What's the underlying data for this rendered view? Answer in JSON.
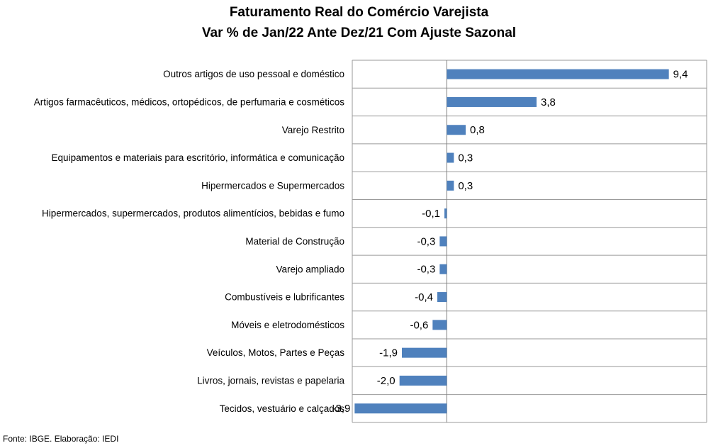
{
  "chart_data": {
    "type": "bar",
    "orientation": "horizontal",
    "title": "Faturamento Real do Comércio Varejista",
    "subtitle": "Var % de Jan/22 Ante Dez/21 Com Ajuste Sazonal",
    "categories": [
      "Outros artigos de uso pessoal e doméstico",
      "Artigos farmacêuticos, médicos, ortopédicos, de perfumaria e cosméticos",
      "Varejo Restrito",
      "Equipamentos e materiais para escritório, informática e comunicação",
      "Hipermercados e Supermercados",
      "Hipermercados, supermercados, produtos alimentícios, bebidas e fumo",
      "Material de Construção",
      "Varejo ampliado",
      "Combustíveis e lubrificantes",
      "Móveis e eletrodomésticos",
      "Veículos, Motos, Partes e Peças",
      "Livros, jornais, revistas e papelaria",
      "Tecidos, vestuário e calçados"
    ],
    "values": [
      9.4,
      3.8,
      0.8,
      0.3,
      0.3,
      -0.1,
      -0.3,
      -0.3,
      -0.4,
      -0.6,
      -1.9,
      -2.0,
      -3.9
    ],
    "value_labels": [
      "9,4",
      "3,8",
      "0,8",
      "0,3",
      "0,3",
      "-0,1",
      "-0,3",
      "-0,3",
      "-0,4",
      "-0,6",
      "-1,9",
      "-2,0",
      "-3,9"
    ],
    "xlim": [
      -4.0,
      11.0
    ],
    "grid": "horizontal separators",
    "bar_color": "#4f81bd",
    "source": "Fonte: IBGE. Elaboração: IEDI"
  }
}
